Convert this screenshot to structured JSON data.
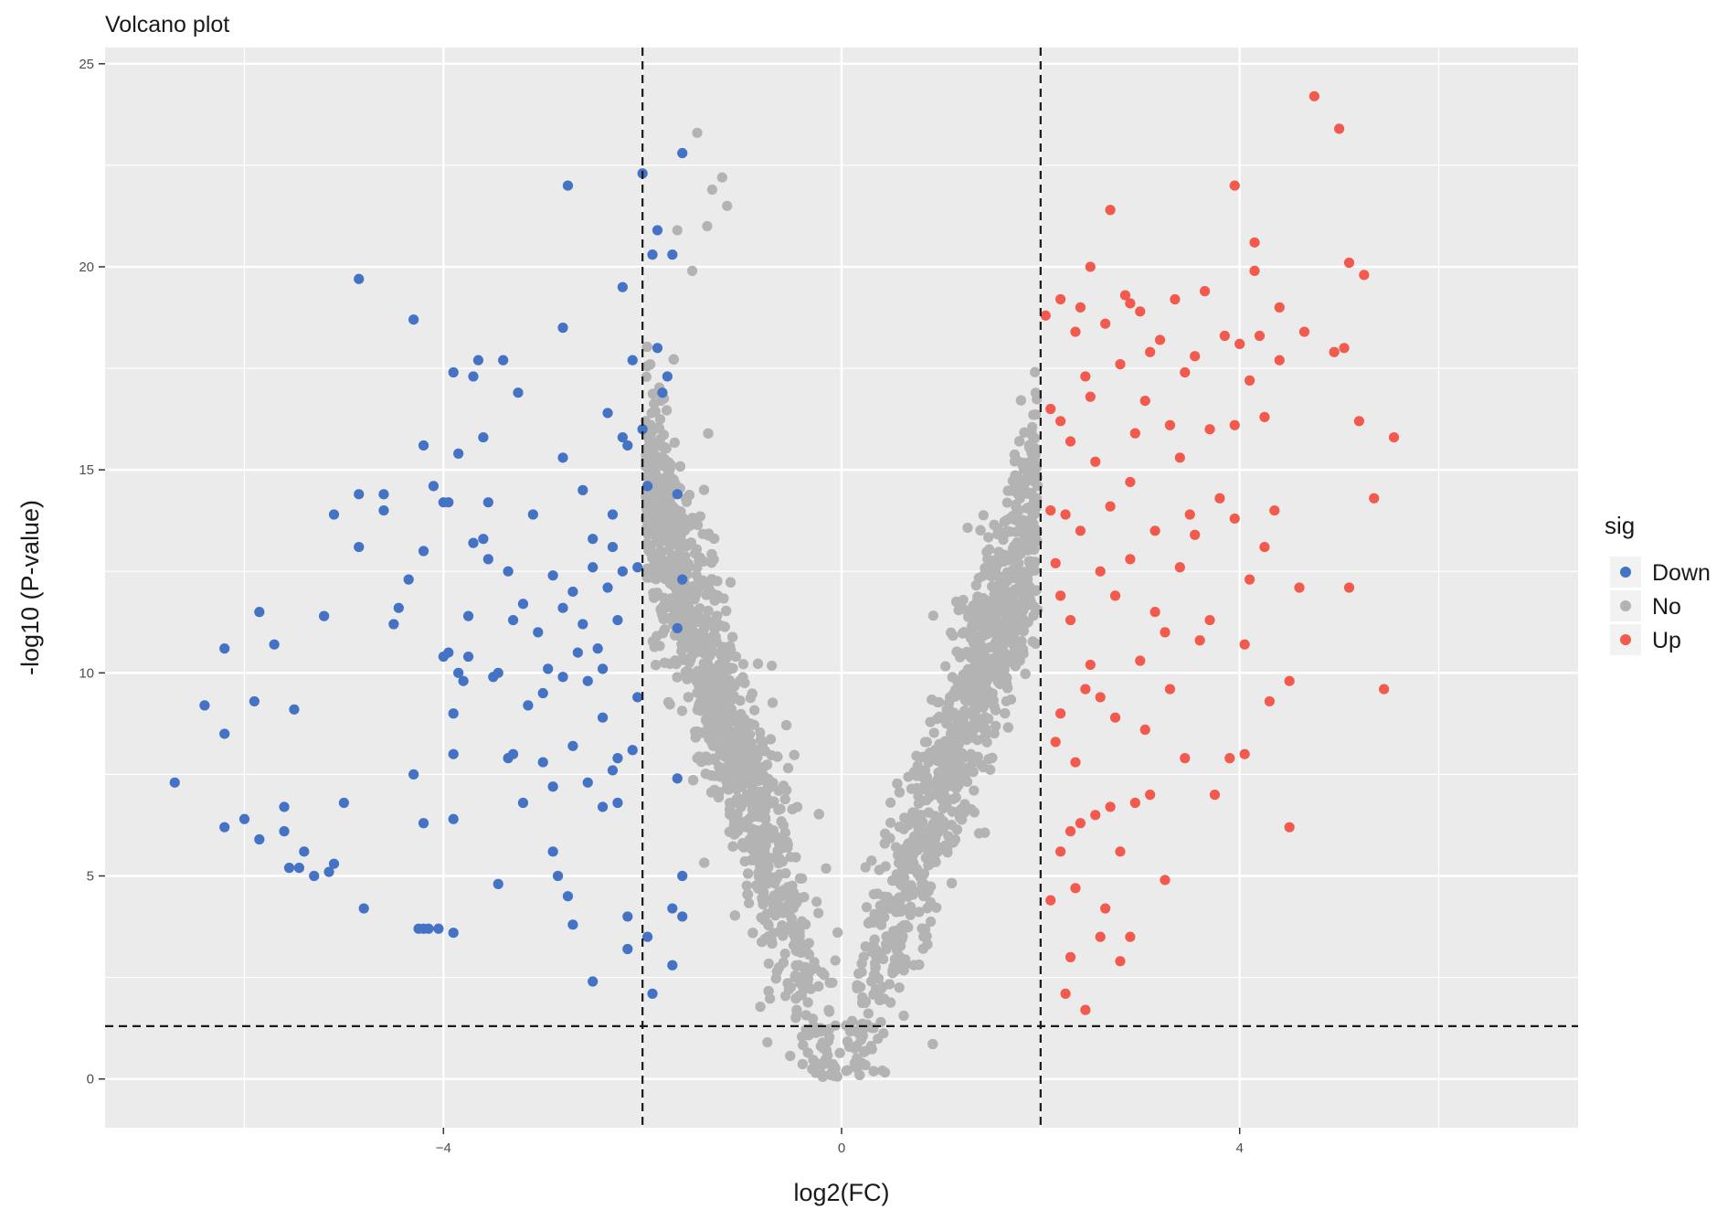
{
  "chart_data": {
    "type": "scatter",
    "title": "Volcano plot",
    "xlabel": "log2(FC)",
    "ylabel": "-log10 (P-value)",
    "xlim": [
      -7.4,
      7.4
    ],
    "ylim": [
      -1.2,
      25.4
    ],
    "x_ticks": [
      -4,
      0,
      4
    ],
    "y_ticks": [
      0,
      5,
      10,
      15,
      20,
      25
    ],
    "grid": true,
    "thresholds": {
      "log2fc": [
        -2,
        2
      ],
      "neg_log10_p": 1.3
    },
    "legend": {
      "title": "sig",
      "position": "right",
      "entries": [
        {
          "label": "Down",
          "color": "#4472c4"
        },
        {
          "label": "No",
          "color": "#b3b3b3"
        },
        {
          "label": "Up",
          "color": "#f15a4d"
        }
      ]
    },
    "colors": {
      "Down": "#4472c4",
      "No": "#b3b3b3",
      "Up": "#f15a4d",
      "panel": "#ebebeb",
      "grid": "#ffffff"
    },
    "series": [
      {
        "name": "Down",
        "points": [
          [
            -6.7,
            7.3
          ],
          [
            -6.4,
            9.2
          ],
          [
            -6.2,
            6.2
          ],
          [
            -6.2,
            8.5
          ],
          [
            -6.2,
            10.6
          ],
          [
            -6.0,
            6.4
          ],
          [
            -5.9,
            9.3
          ],
          [
            -5.85,
            11.5
          ],
          [
            -5.85,
            5.9
          ],
          [
            -5.7,
            10.7
          ],
          [
            -5.6,
            6.7
          ],
          [
            -5.6,
            6.1
          ],
          [
            -5.55,
            5.2
          ],
          [
            -5.5,
            9.1
          ],
          [
            -5.45,
            5.2
          ],
          [
            -5.4,
            5.6
          ],
          [
            -5.3,
            5.0
          ],
          [
            -5.2,
            11.4
          ],
          [
            -5.15,
            5.1
          ],
          [
            -5.1,
            5.3
          ],
          [
            -5.1,
            13.9
          ],
          [
            -5.0,
            6.8
          ],
          [
            -4.85,
            19.7
          ],
          [
            -4.85,
            14.4
          ],
          [
            -4.85,
            13.1
          ],
          [
            -4.8,
            4.2
          ],
          [
            -4.6,
            14.4
          ],
          [
            -4.6,
            14.0
          ],
          [
            -4.5,
            11.2
          ],
          [
            -4.45,
            11.6
          ],
          [
            -4.35,
            12.3
          ],
          [
            -4.3,
            18.7
          ],
          [
            -4.3,
            7.5
          ],
          [
            -4.25,
            3.7
          ],
          [
            -4.2,
            3.7
          ],
          [
            -4.2,
            6.3
          ],
          [
            -4.2,
            13.0
          ],
          [
            -4.2,
            15.6
          ],
          [
            -4.15,
            3.7
          ],
          [
            -4.1,
            14.6
          ],
          [
            -4.05,
            3.7
          ],
          [
            -4.0,
            14.2
          ],
          [
            -4.0,
            10.4
          ],
          [
            -3.95,
            14.2
          ],
          [
            -3.95,
            10.5
          ],
          [
            -3.9,
            3.6
          ],
          [
            -3.9,
            9.0
          ],
          [
            -3.9,
            8.0
          ],
          [
            -3.9,
            17.4
          ],
          [
            -3.85,
            10.0
          ],
          [
            -3.85,
            15.4
          ],
          [
            -3.8,
            9.8
          ],
          [
            -3.75,
            11.4
          ],
          [
            -3.75,
            10.4
          ],
          [
            -3.7,
            13.2
          ],
          [
            -3.7,
            17.3
          ],
          [
            -3.65,
            17.7
          ],
          [
            -3.6,
            15.8
          ],
          [
            -3.55,
            14.2
          ],
          [
            -3.55,
            12.8
          ],
          [
            -3.5,
            9.9
          ],
          [
            -3.45,
            10.0
          ],
          [
            -3.45,
            4.8
          ],
          [
            -3.4,
            17.7
          ],
          [
            -3.35,
            7.9
          ],
          [
            -3.3,
            11.3
          ],
          [
            -3.3,
            8.0
          ],
          [
            -3.2,
            6.8
          ],
          [
            -3.2,
            11.7
          ],
          [
            -3.15,
            9.2
          ],
          [
            -3.1,
            13.9
          ],
          [
            -3.05,
            11.0
          ],
          [
            -3.0,
            9.5
          ],
          [
            -3.0,
            7.8
          ],
          [
            -2.95,
            10.1
          ],
          [
            -2.9,
            5.6
          ],
          [
            -2.9,
            7.2
          ],
          [
            -2.85,
            5.0
          ],
          [
            -2.8,
            9.9
          ],
          [
            -2.8,
            11.6
          ],
          [
            -2.8,
            15.3
          ],
          [
            -2.8,
            18.5
          ],
          [
            -2.75,
            22.0
          ],
          [
            -2.75,
            4.5
          ],
          [
            -2.7,
            3.8
          ],
          [
            -2.7,
            12.0
          ],
          [
            -2.65,
            10.5
          ],
          [
            -2.6,
            11.2
          ],
          [
            -2.55,
            9.8
          ],
          [
            -2.55,
            7.3
          ],
          [
            -2.5,
            2.4
          ],
          [
            -2.5,
            12.6
          ],
          [
            -2.45,
            10.6
          ],
          [
            -2.4,
            6.7
          ],
          [
            -2.4,
            8.9
          ],
          [
            -2.35,
            16.4
          ],
          [
            -2.3,
            13.1
          ],
          [
            -2.3,
            13.9
          ],
          [
            -2.25,
            6.8
          ],
          [
            -2.25,
            11.3
          ],
          [
            -2.2,
            19.5
          ],
          [
            -2.2,
            12.5
          ],
          [
            -2.15,
            3.2
          ],
          [
            -2.15,
            4.0
          ],
          [
            -2.1,
            17.7
          ],
          [
            -2.05,
            12.6
          ],
          [
            -2.0,
            16.0
          ],
          [
            -2.0,
            22.3
          ],
          [
            -1.95,
            14.6
          ],
          [
            -1.95,
            3.5
          ],
          [
            -1.9,
            2.1
          ],
          [
            -1.9,
            20.3
          ],
          [
            -1.85,
            20.9
          ],
          [
            -1.85,
            18.0
          ],
          [
            -1.8,
            16.9
          ],
          [
            -1.75,
            17.3
          ],
          [
            -1.7,
            2.8
          ],
          [
            -1.7,
            4.2
          ],
          [
            -1.7,
            20.3
          ],
          [
            -1.65,
            14.4
          ],
          [
            -1.65,
            11.1
          ],
          [
            -1.65,
            7.4
          ],
          [
            -1.6,
            22.8
          ],
          [
            -1.6,
            4.0
          ],
          [
            -1.6,
            5.0
          ],
          [
            -1.6,
            12.3
          ],
          [
            -2.2,
            15.8
          ],
          [
            -2.15,
            15.6
          ],
          [
            -2.3,
            7.6
          ],
          [
            -2.25,
            7.9
          ],
          [
            -2.1,
            8.1
          ],
          [
            -2.05,
            9.4
          ],
          [
            -2.4,
            10.1
          ],
          [
            -2.35,
            12.1
          ],
          [
            -2.5,
            13.3
          ],
          [
            -2.6,
            14.5
          ],
          [
            -3.35,
            12.5
          ],
          [
            -3.6,
            13.3
          ],
          [
            -3.9,
            6.4
          ],
          [
            -3.25,
            16.9
          ],
          [
            -2.9,
            12.4
          ],
          [
            -2.7,
            8.2
          ]
        ]
      },
      {
        "name": "Up",
        "points": [
          [
            2.05,
            18.8
          ],
          [
            2.1,
            16.5
          ],
          [
            2.1,
            14.0
          ],
          [
            2.15,
            12.7
          ],
          [
            2.2,
            19.2
          ],
          [
            2.2,
            9.0
          ],
          [
            2.2,
            5.6
          ],
          [
            2.25,
            2.1
          ],
          [
            2.3,
            15.7
          ],
          [
            2.3,
            11.3
          ],
          [
            2.3,
            3.0
          ],
          [
            2.35,
            7.8
          ],
          [
            2.4,
            19.0
          ],
          [
            2.4,
            13.5
          ],
          [
            2.45,
            1.7
          ],
          [
            2.5,
            20.0
          ],
          [
            2.5,
            16.8
          ],
          [
            2.5,
            10.2
          ],
          [
            2.55,
            6.5
          ],
          [
            2.6,
            3.5
          ],
          [
            2.65,
            18.6
          ],
          [
            2.7,
            21.4
          ],
          [
            2.7,
            14.1
          ],
          [
            2.75,
            8.9
          ],
          [
            2.8,
            17.6
          ],
          [
            2.8,
            5.6
          ],
          [
            2.85,
            19.3
          ],
          [
            2.9,
            12.8
          ],
          [
            2.9,
            3.5
          ],
          [
            2.95,
            15.9
          ],
          [
            3.0,
            18.9
          ],
          [
            3.0,
            10.3
          ],
          [
            3.05,
            16.7
          ],
          [
            3.1,
            7.0
          ],
          [
            3.15,
            13.5
          ],
          [
            3.2,
            18.2
          ],
          [
            3.25,
            11.0
          ],
          [
            3.3,
            9.6
          ],
          [
            3.35,
            19.2
          ],
          [
            3.4,
            15.3
          ],
          [
            3.45,
            7.9
          ],
          [
            3.5,
            13.9
          ],
          [
            3.55,
            17.8
          ],
          [
            3.6,
            10.8
          ],
          [
            3.65,
            19.4
          ],
          [
            3.7,
            16.0
          ],
          [
            3.75,
            7.0
          ],
          [
            3.8,
            14.3
          ],
          [
            3.9,
            7.9
          ],
          [
            3.95,
            22.0
          ],
          [
            3.95,
            16.1
          ],
          [
            4.0,
            18.1
          ],
          [
            4.05,
            8.0
          ],
          [
            4.05,
            10.7
          ],
          [
            4.1,
            17.2
          ],
          [
            4.15,
            19.9
          ],
          [
            4.15,
            20.6
          ],
          [
            4.2,
            18.3
          ],
          [
            4.25,
            13.1
          ],
          [
            4.3,
            9.3
          ],
          [
            4.35,
            14.0
          ],
          [
            4.4,
            19.0
          ],
          [
            4.4,
            17.7
          ],
          [
            4.5,
            6.2
          ],
          [
            4.5,
            9.8
          ],
          [
            4.6,
            12.1
          ],
          [
            4.65,
            18.4
          ],
          [
            4.75,
            24.2
          ],
          [
            4.95,
            17.9
          ],
          [
            5.0,
            23.4
          ],
          [
            5.05,
            18.0
          ],
          [
            5.1,
            20.1
          ],
          [
            5.1,
            12.1
          ],
          [
            5.25,
            19.8
          ],
          [
            5.2,
            16.2
          ],
          [
            5.35,
            14.3
          ],
          [
            5.45,
            9.6
          ],
          [
            5.55,
            15.8
          ],
          [
            4.25,
            16.3
          ],
          [
            3.85,
            18.3
          ],
          [
            3.3,
            16.1
          ],
          [
            3.1,
            17.9
          ],
          [
            2.9,
            14.7
          ],
          [
            2.75,
            11.9
          ],
          [
            2.6,
            9.4
          ],
          [
            2.4,
            6.3
          ],
          [
            2.35,
            4.7
          ],
          [
            2.2,
            11.9
          ],
          [
            2.25,
            13.9
          ],
          [
            2.15,
            8.3
          ],
          [
            2.6,
            12.5
          ],
          [
            2.55,
            15.2
          ],
          [
            2.45,
            17.3
          ],
          [
            2.95,
            6.8
          ],
          [
            3.05,
            8.6
          ],
          [
            3.15,
            11.5
          ],
          [
            3.25,
            4.9
          ],
          [
            2.65,
            4.2
          ],
          [
            2.8,
            2.9
          ],
          [
            2.1,
            4.4
          ],
          [
            2.3,
            6.1
          ],
          [
            2.45,
            9.6
          ],
          [
            2.7,
            6.7
          ],
          [
            3.4,
            12.6
          ],
          [
            3.55,
            13.4
          ],
          [
            3.7,
            11.3
          ],
          [
            3.95,
            13.8
          ],
          [
            4.1,
            12.3
          ],
          [
            2.2,
            16.2
          ],
          [
            2.35,
            18.4
          ],
          [
            2.9,
            19.1
          ],
          [
            3.45,
            17.4
          ]
        ]
      }
    ]
  }
}
